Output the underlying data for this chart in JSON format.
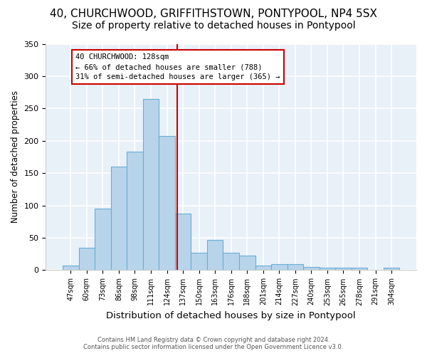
{
  "title1": "40, CHURCHWOOD, GRIFFITHSTOWN, PONTYPOOL, NP4 5SX",
  "title2": "Size of property relative to detached houses in Pontypool",
  "xlabel": "Distribution of detached houses by size in Pontypool",
  "ylabel": "Number of detached properties",
  "categories": [
    "47sqm",
    "60sqm",
    "73sqm",
    "86sqm",
    "98sqm",
    "111sqm",
    "124sqm",
    "137sqm",
    "150sqm",
    "163sqm",
    "176sqm",
    "188sqm",
    "201sqm",
    "214sqm",
    "227sqm",
    "240sqm",
    "253sqm",
    "265sqm",
    "278sqm",
    "291sqm",
    "304sqm"
  ],
  "values": [
    7,
    35,
    95,
    160,
    183,
    265,
    207,
    88,
    27,
    47,
    27,
    22,
    7,
    9,
    9,
    5,
    4,
    4,
    4,
    0,
    4
  ],
  "bar_color": "#b8d4ea",
  "bar_edge_color": "#6aadd5",
  "property_label": "40 CHURCHWOOD: 128sqm",
  "annotation_line1": "← 66% of detached houses are smaller (788)",
  "annotation_line2": "31% of semi-detached houses are larger (365) →",
  "vline_color": "#cc0000",
  "background_color": "#e8f0f8",
  "footer_line1": "Contains HM Land Registry data © Crown copyright and database right 2024.",
  "footer_line2": "Contains public sector information licensed under the Open Government Licence v3.0.",
  "ylim": [
    0,
    350
  ],
  "title_fontsize": 11,
  "subtitle_fontsize": 10,
  "xlabel_fontsize": 9.5,
  "ylabel_fontsize": 8.5,
  "tick_fontsize": 7,
  "annotation_fontsize": 7.5
}
